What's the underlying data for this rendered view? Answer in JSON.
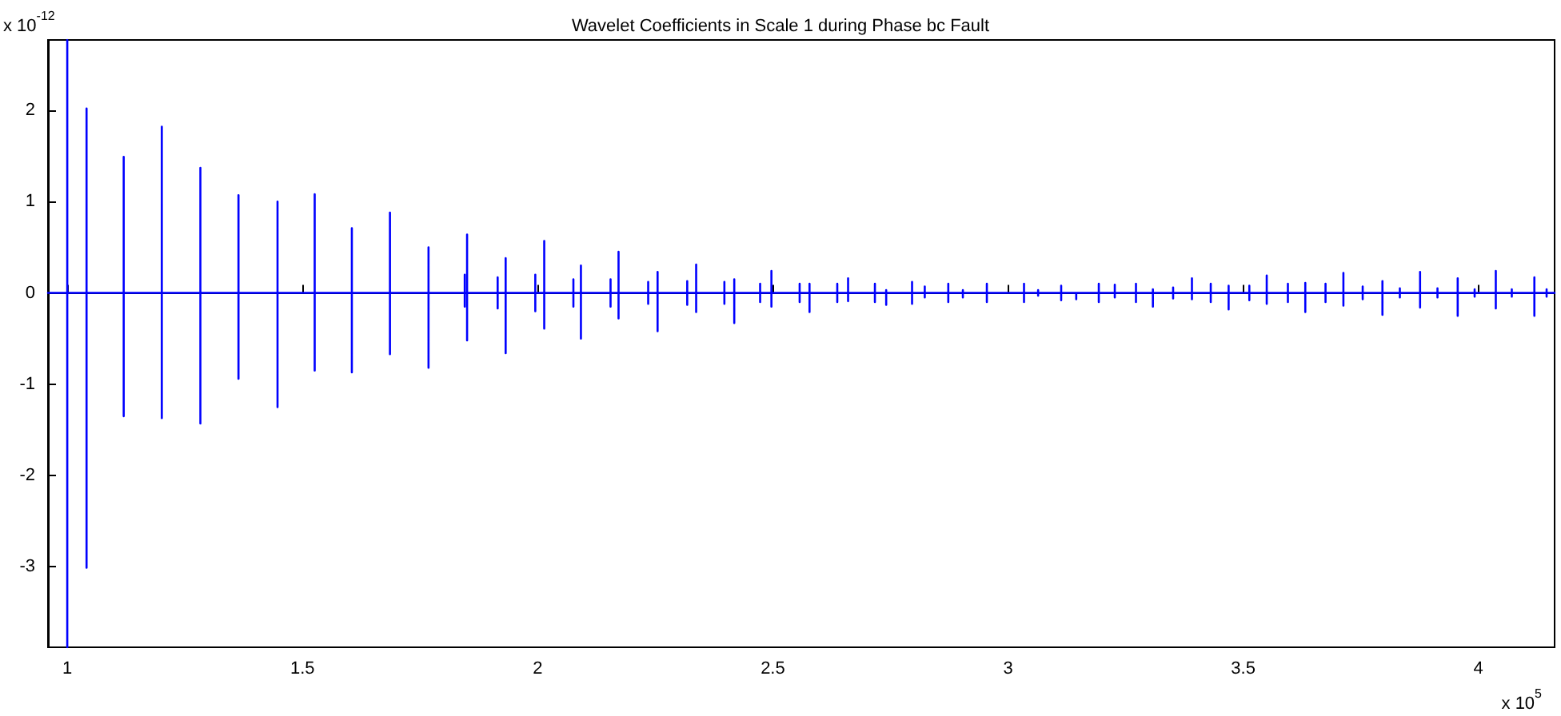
{
  "chart_data": {
    "type": "line",
    "title": "Wavelet Coefficients in Scale 1 during Phase bc Fault",
    "annotations": [
      "x 10$^{-12}$",
      "x 10$^{5}$"
    ],
    "series": [
      {
        "color": "#0000ff",
        "x": [
          0.959,
          1.0,
          1.0,
          1.0,
          1.0,
          1.041,
          1.041,
          1.041,
          1.041,
          1.12,
          1.12,
          1.12,
          1.12,
          1.201,
          1.201,
          1.201,
          1.201,
          1.283,
          1.283,
          1.283,
          1.283,
          1.364,
          1.364,
          1.364,
          1.364,
          1.447,
          1.447,
          1.447,
          1.447,
          1.526,
          1.526,
          1.526,
          1.526,
          1.605,
          1.605,
          1.605,
          1.605,
          1.686,
          1.686,
          1.686,
          1.686,
          1.768,
          1.768,
          1.768,
          1.768,
          1.845,
          1.845,
          1.845,
          1.845,
          1.85,
          1.85,
          1.85,
          1.85,
          1.915,
          1.915,
          1.915,
          1.915,
          1.932,
          1.932,
          1.932,
          1.932,
          1.995,
          1.995,
          1.995,
          1.995,
          2.014,
          2.014,
          2.014,
          2.014,
          2.076,
          2.076,
          2.076,
          2.076,
          2.092,
          2.092,
          2.092,
          2.092,
          2.155,
          2.155,
          2.155,
          2.155,
          2.172,
          2.172,
          2.172,
          2.172,
          2.235,
          2.235,
          2.235,
          2.235,
          2.255,
          2.255,
          2.255,
          2.255,
          2.318,
          2.318,
          2.318,
          2.318,
          2.337,
          2.337,
          2.337,
          2.337,
          2.397,
          2.397,
          2.397,
          2.397,
          2.418,
          2.418,
          2.418,
          2.418,
          2.473,
          2.473,
          2.473,
          2.473,
          2.497,
          2.497,
          2.497,
          2.497,
          2.557,
          2.557,
          2.557,
          2.557,
          2.578,
          2.578,
          2.578,
          2.578,
          2.637,
          2.637,
          2.637,
          2.637,
          2.66,
          2.66,
          2.66,
          2.66,
          2.717,
          2.717,
          2.717,
          2.717,
          2.741,
          2.741,
          2.741,
          2.741,
          2.796,
          2.796,
          2.796,
          2.796,
          2.823,
          2.823,
          2.823,
          2.823,
          2.873,
          2.873,
          2.873,
          2.873,
          2.904,
          2.904,
          2.904,
          2.904,
          2.955,
          2.955,
          2.955,
          2.955,
          3.034,
          3.034,
          3.034,
          3.034,
          3.064,
          3.064,
          3.064,
          3.064,
          3.113,
          3.113,
          3.113,
          3.113,
          3.145,
          3.145,
          3.145,
          3.145,
          3.193,
          3.193,
          3.193,
          3.193,
          3.227,
          3.227,
          3.227,
          3.227,
          3.272,
          3.272,
          3.272,
          3.272,
          3.308,
          3.308,
          3.308,
          3.308,
          3.351,
          3.351,
          3.351,
          3.351,
          3.391,
          3.391,
          3.391,
          3.391,
          3.431,
          3.431,
          3.431,
          3.431,
          3.469,
          3.469,
          3.469,
          3.469,
          3.513,
          3.513,
          3.513,
          3.513,
          3.55,
          3.55,
          3.55,
          3.55,
          3.595,
          3.595,
          3.595,
          3.595,
          3.632,
          3.632,
          3.632,
          3.632,
          3.675,
          3.675,
          3.675,
          3.675,
          3.713,
          3.713,
          3.713,
          3.713,
          3.754,
          3.754,
          3.754,
          3.754,
          3.796,
          3.796,
          3.796,
          3.796,
          3.833,
          3.833,
          3.833,
          3.833,
          3.876,
          3.876,
          3.876,
          3.876,
          3.913,
          3.913,
          3.913,
          3.913,
          3.956,
          3.956,
          3.956,
          3.956,
          3.992,
          3.992,
          3.992,
          3.992,
          4.037,
          4.037,
          4.037,
          4.037,
          4.071,
          4.071,
          4.071,
          4.071,
          4.119,
          4.119,
          4.119,
          4.119,
          4.145,
          4.145,
          4.145,
          4.145,
          4.162
        ],
        "values": [
          0,
          0,
          2.77,
          -3.88,
          0,
          0,
          2.02,
          -3.01,
          0,
          0,
          1.49,
          -1.35,
          0,
          0,
          1.82,
          -1.37,
          0,
          0,
          1.37,
          -1.43,
          0,
          0,
          1.07,
          -0.94,
          0,
          0,
          1.0,
          -1.25,
          0,
          0,
          1.08,
          -0.85,
          0,
          0,
          0.71,
          -0.87,
          0,
          0,
          0.88,
          -0.67,
          0,
          0,
          0.5,
          -0.82,
          0,
          0,
          0.2,
          -0.15,
          0,
          0,
          0.64,
          -0.52,
          0,
          0,
          0.17,
          -0.17,
          0,
          0,
          0.38,
          -0.66,
          0,
          0,
          0.2,
          -0.2,
          0,
          0,
          0.57,
          -0.39,
          0,
          0,
          0.15,
          -0.15,
          0,
          0,
          0.3,
          -0.5,
          0,
          0,
          0.15,
          -0.15,
          0,
          0,
          0.45,
          -0.28,
          0,
          0,
          0.12,
          -0.12,
          0,
          0,
          0.23,
          -0.42,
          0,
          0,
          0.13,
          -0.13,
          0,
          0,
          0.31,
          -0.21,
          0,
          0,
          0.12,
          -0.12,
          0,
          0,
          0.15,
          -0.33,
          0,
          0,
          0.1,
          -0.1,
          0,
          0,
          0.24,
          -0.15,
          0,
          0,
          0.1,
          -0.1,
          0,
          0,
          0.1,
          -0.21,
          0,
          0,
          0.1,
          -0.1,
          0,
          0,
          0.16,
          -0.09,
          0,
          0,
          0.1,
          -0.1,
          0,
          0,
          0.03,
          -0.13,
          0,
          0,
          0.12,
          -0.12,
          0,
          0,
          0.07,
          -0.05,
          0,
          0,
          0.1,
          -0.1,
          0,
          0,
          0.03,
          -0.05,
          0,
          0,
          0.1,
          -0.1,
          0,
          0,
          0.1,
          -0.1,
          0,
          0,
          0.03,
          -0.03,
          0,
          0,
          0.08,
          -0.08,
          0,
          0,
          0.01,
          -0.07,
          0,
          0,
          0.1,
          -0.1,
          0,
          0,
          0.09,
          -0.05,
          0,
          0,
          0.1,
          -0.1,
          0,
          0,
          0.04,
          -0.15,
          0,
          0,
          0.06,
          -0.06,
          0,
          0,
          0.16,
          -0.07,
          0,
          0,
          0.1,
          -0.1,
          0,
          0,
          0.08,
          -0.18,
          0,
          0,
          0.08,
          -0.08,
          0,
          0,
          0.19,
          -0.12,
          0,
          0,
          0.1,
          -0.1,
          0,
          0,
          0.11,
          -0.21,
          0,
          0,
          0.1,
          -0.1,
          0,
          0,
          0.22,
          -0.14,
          0,
          0,
          0.07,
          -0.07,
          0,
          0,
          0.13,
          -0.24,
          0,
          0,
          0.05,
          -0.05,
          0,
          0,
          0.23,
          -0.16,
          0,
          0,
          0.05,
          -0.05,
          0,
          0,
          0.16,
          -0.25,
          0,
          0,
          0.04,
          -0.04,
          0,
          0,
          0.24,
          -0.17,
          0,
          0,
          0.04,
          -0.04,
          0,
          0,
          0.17,
          -0.25,
          0,
          0,
          0.04,
          -0.04,
          0,
          0
        ]
      }
    ],
    "xlim": [
      0.959,
      4.162
    ],
    "xticks": [
      1,
      1.5,
      2,
      2.5,
      3,
      3.5,
      4
    ],
    "ylim": [
      -3.88,
      2.77
    ],
    "yticks": [
      -3,
      -2,
      -1,
      0,
      1,
      2
    ]
  }
}
